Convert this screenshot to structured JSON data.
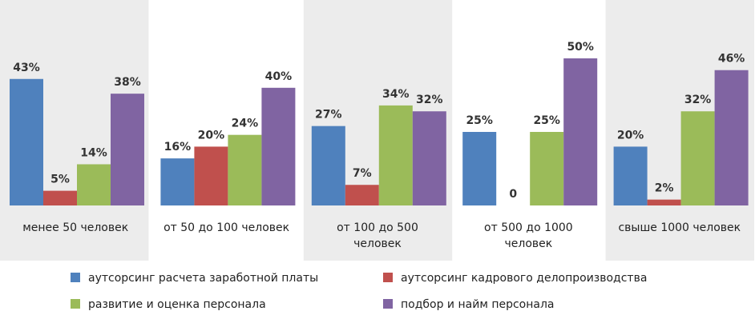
{
  "chart_data": {
    "type": "bar",
    "categories": [
      "менее 50 человек",
      "от 50 до 100 человек",
      "от 100 до 500 человек",
      "от 500 до 1000 человек",
      "свыше 1000 человек"
    ],
    "series": [
      {
        "name": "аутсорсинг расчета заработной платы",
        "color": "#4f81bd",
        "values": [
          43,
          16,
          27,
          25,
          20
        ],
        "value_labels": [
          "43%",
          "16%",
          "27%",
          "25%",
          "20%"
        ]
      },
      {
        "name": "аутсорсинг кадрового делопроизводства",
        "color": "#c0504d",
        "values": [
          5,
          20,
          7,
          0,
          2
        ],
        "value_labels": [
          "5%",
          "20%",
          "7%",
          "0",
          "2%"
        ]
      },
      {
        "name": "развитие и оценка персонала",
        "color": "#9bbb59",
        "values": [
          14,
          24,
          34,
          25,
          32
        ],
        "value_labels": [
          "14%",
          "24%",
          "34%",
          "25%",
          "32%"
        ]
      },
      {
        "name": "подбор и найм персонала",
        "color": "#8064a2",
        "values": [
          38,
          40,
          32,
          50,
          46
        ],
        "value_labels": [
          "38%",
          "40%",
          "32%",
          "50%",
          "46%"
        ]
      }
    ],
    "ylim": [
      0,
      50
    ]
  }
}
